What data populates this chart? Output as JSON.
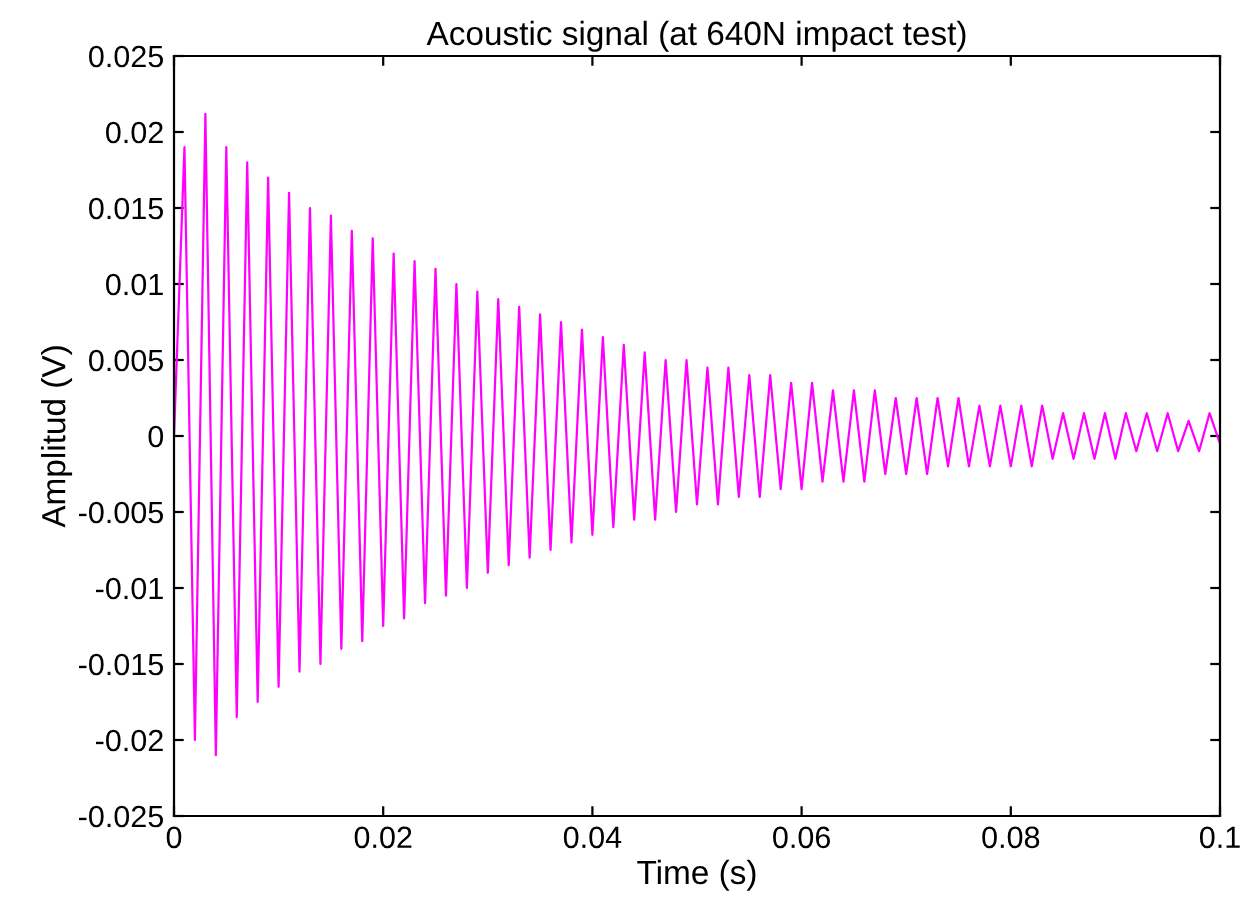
{
  "chart_data": {
    "type": "line",
    "title": "Acoustic signal (at 640N impact test)",
    "xlabel": "Time (s)",
    "ylabel": "Amplitud (V)",
    "xlim": [
      0,
      0.1
    ],
    "xticks": [
      0,
      0.02,
      0.04,
      0.06,
      0.08,
      0.1
    ],
    "ylim": [
      -0.025,
      0.025
    ],
    "yticks": [
      -0.025,
      -0.02,
      -0.015,
      -0.01,
      -0.005,
      0,
      0.005,
      0.01,
      0.015,
      0.02,
      0.025
    ],
    "grid": false,
    "legend": false,
    "marker": "none",
    "line_style": "solid",
    "series": [
      {
        "color": "#ff00ff",
        "x": [
          0,
          0.001,
          0.002,
          0.003,
          0.004,
          0.005,
          0.006,
          0.007,
          0.008,
          0.009,
          0.01,
          0.011,
          0.012,
          0.013,
          0.014,
          0.015,
          0.016,
          0.017,
          0.018,
          0.019,
          0.02,
          0.021,
          0.022,
          0.023,
          0.024,
          0.025,
          0.026,
          0.027,
          0.028,
          0.029,
          0.03,
          0.031,
          0.032,
          0.033,
          0.034,
          0.035,
          0.036,
          0.037,
          0.038,
          0.039,
          0.04,
          0.041,
          0.042,
          0.043,
          0.044,
          0.045,
          0.046,
          0.047,
          0.048,
          0.049,
          0.05,
          0.051,
          0.052,
          0.053,
          0.054,
          0.055,
          0.056,
          0.057,
          0.058,
          0.059,
          0.06,
          0.061,
          0.062,
          0.063,
          0.064,
          0.065,
          0.066,
          0.067,
          0.068,
          0.069,
          0.07,
          0.071,
          0.072,
          0.073,
          0.074,
          0.075,
          0.076,
          0.077,
          0.078,
          0.079,
          0.08,
          0.081,
          0.082,
          0.083,
          0.084,
          0.085,
          0.086,
          0.087,
          0.088,
          0.089,
          0.09,
          0.091,
          0.092,
          0.093,
          0.094,
          0.095,
          0.096,
          0.097,
          0.098,
          0.099,
          0.1
        ],
        "values": [
          0,
          0.019,
          -0.02,
          0.0212,
          -0.021,
          0.019,
          -0.0185,
          0.018,
          -0.0175,
          0.017,
          -0.0165,
          0.016,
          -0.0155,
          0.015,
          -0.015,
          0.0145,
          -0.014,
          0.0135,
          -0.0135,
          0.013,
          -0.0125,
          0.012,
          -0.012,
          0.0115,
          -0.011,
          0.011,
          -0.0105,
          0.01,
          -0.01,
          0.0095,
          -0.009,
          0.009,
          -0.0085,
          0.0085,
          -0.008,
          0.008,
          -0.0075,
          0.0075,
          -0.007,
          0.007,
          -0.0065,
          0.0065,
          -0.006,
          0.006,
          -0.0055,
          0.0055,
          -0.0055,
          0.005,
          -0.005,
          0.005,
          -0.0045,
          0.0045,
          -0.0045,
          0.0045,
          -0.004,
          0.004,
          -0.004,
          0.004,
          -0.0035,
          0.0035,
          -0.0035,
          0.0035,
          -0.003,
          0.003,
          -0.003,
          0.003,
          -0.003,
          0.003,
          -0.0025,
          0.0025,
          -0.0025,
          0.0025,
          -0.0025,
          0.0025,
          -0.002,
          0.0025,
          -0.002,
          0.002,
          -0.002,
          0.002,
          -0.002,
          0.002,
          -0.002,
          0.002,
          -0.0015,
          0.0015,
          -0.0015,
          0.0015,
          -0.0015,
          0.0015,
          -0.0015,
          0.0015,
          -0.001,
          0.0015,
          -0.001,
          0.0015,
          -0.001,
          0.001,
          -0.001,
          0.0015,
          -0.0005
        ]
      }
    ]
  }
}
